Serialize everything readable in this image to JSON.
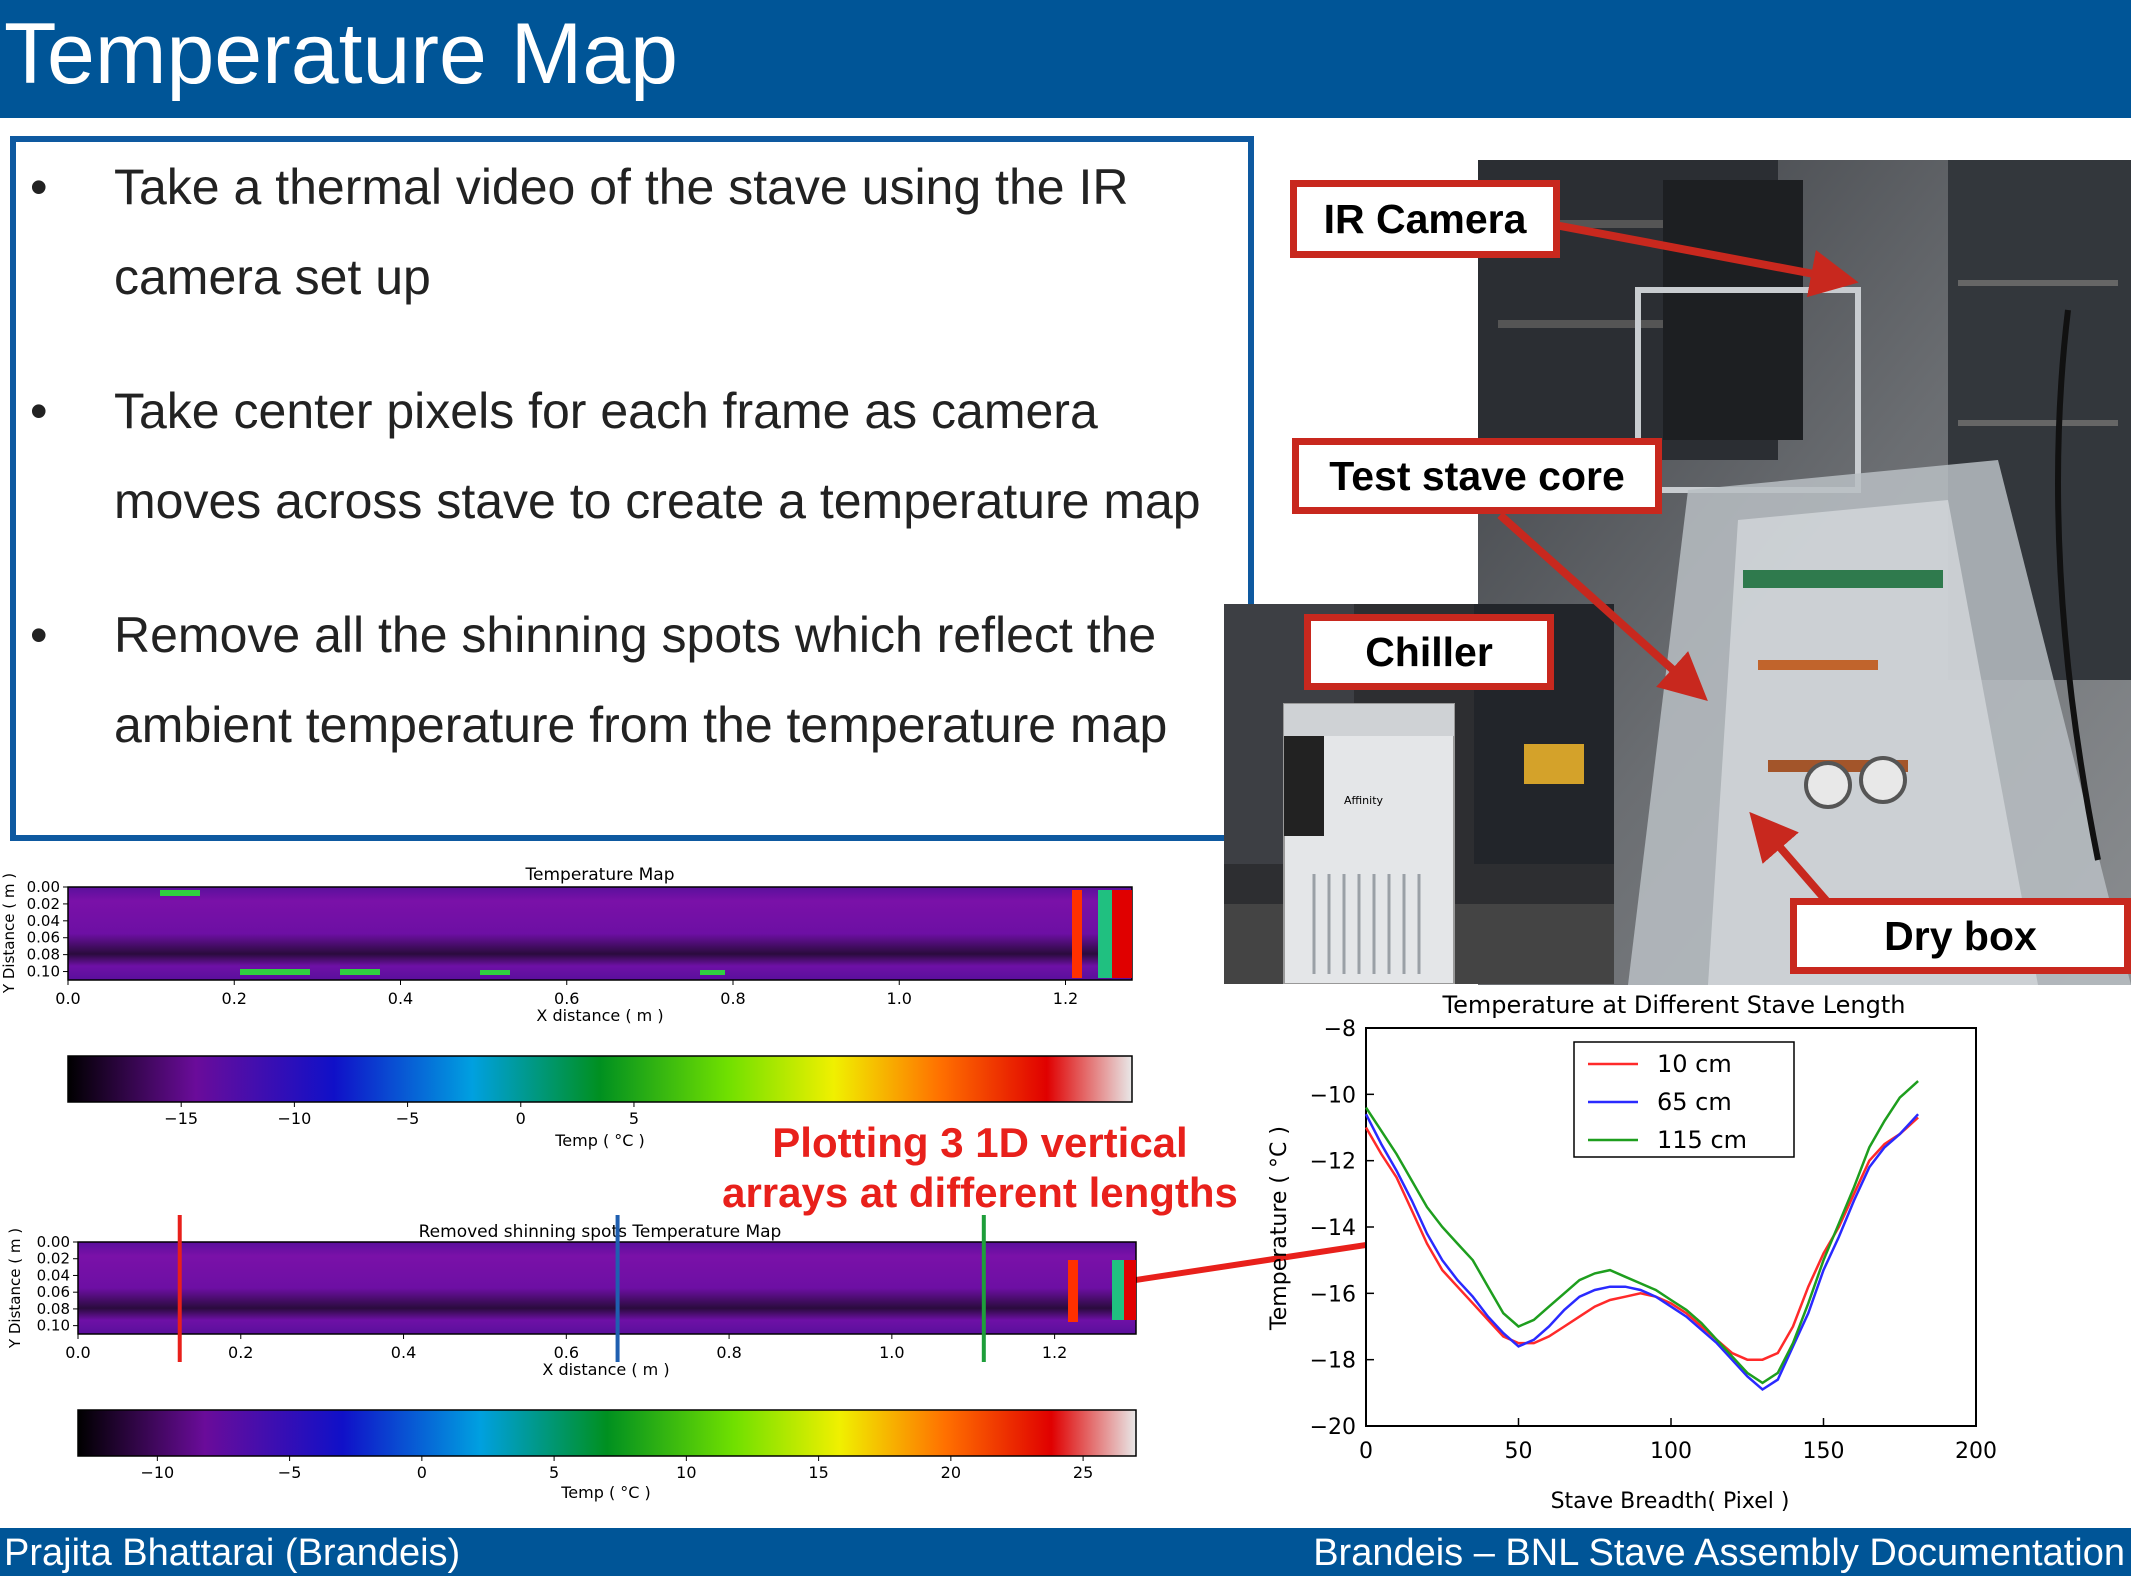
{
  "slide": {
    "title": "Temperature Map",
    "bullets": [
      "Take a thermal video of the stave using the IR camera set up",
      "Take center pixels for each frame as camera moves across stave to create a temperature map",
      "Remove all the shinning spots which reflect the ambient temperature  from the temperature map"
    ],
    "bullet_symbol": "•",
    "annotation_lines": [
      "Plotting 3 1D vertical",
      "arrays at different lengths"
    ]
  },
  "photo": {
    "callouts": {
      "ir_camera": "IR Camera",
      "test_stave_core": "Test stave core",
      "chiller": "Chiller",
      "dry_box": "Dry box"
    },
    "chiller_brand": "Affinity"
  },
  "footer": {
    "left": "Prajita Bhattarai (Brandeis)",
    "right": "Brandeis – BNL Stave Assembly Documentation"
  },
  "colors": {
    "bar": "#005597",
    "callout_border": "#c8281e",
    "annotation": "#e8201b"
  },
  "chart_data": [
    {
      "type": "heatmap",
      "title": "Temperature Map",
      "xlabel": "X distance ( m )",
      "ylabel": "Y Distance ( m )",
      "x_ticks": [
        "0.0",
        "0.2",
        "0.4",
        "0.6",
        "0.8",
        "1.0",
        "1.2"
      ],
      "y_ticks": [
        "0.00",
        "0.02",
        "0.04",
        "0.06",
        "0.08",
        "0.10"
      ],
      "xlim": [
        0,
        1.28
      ],
      "ylim": [
        0,
        0.11
      ],
      "colorbar": {
        "label": "Temp (  °C )",
        "ticks": [
          "−15",
          "−10",
          "−5",
          "0",
          "5"
        ],
        "range": [
          -20,
          27
        ]
      }
    },
    {
      "type": "heatmap",
      "title": "Removed shinning spots Temperature Map",
      "xlabel": "X distance ( m )",
      "ylabel": "Y Distance ( m )",
      "x_ticks": [
        "0.0",
        "0.2",
        "0.4",
        "0.6",
        "0.8",
        "1.0",
        "1.2"
      ],
      "y_ticks": [
        "0.00",
        "0.02",
        "0.04",
        "0.06",
        "0.08",
        "0.10"
      ],
      "xlim": [
        0,
        1.3
      ],
      "ylim": [
        0,
        0.11
      ],
      "marker_lines_x": [
        0.125,
        0.663,
        1.113
      ],
      "marker_colors": [
        "#e8201b",
        "#1f5fb0",
        "#1e9e3a"
      ],
      "colorbar": {
        "label": "Temp (  °C )",
        "ticks": [
          "−10",
          "−5",
          "0",
          "5",
          "10",
          "15",
          "20",
          "25"
        ],
        "range": [
          -13,
          27
        ]
      }
    },
    {
      "type": "line",
      "title": "Temperature at Different Stave Length",
      "xlabel": "Stave Breadth( Pixel )",
      "ylabel": "Temperature ( °C )",
      "xlim": [
        0,
        200
      ],
      "ylim": [
        -20,
        -8
      ],
      "x_ticks": [
        0,
        50,
        100,
        150,
        200
      ],
      "y_ticks": [
        -8,
        -10,
        -12,
        -14,
        -16,
        -18,
        -20
      ],
      "legend": "top-center",
      "series": [
        {
          "name": "10 cm",
          "color": "#ff2a2a",
          "points": [
            [
              0,
              -11.0
            ],
            [
              5,
              -11.8
            ],
            [
              10,
              -12.5
            ],
            [
              15,
              -13.5
            ],
            [
              20,
              -14.5
            ],
            [
              25,
              -15.3
            ],
            [
              30,
              -15.8
            ],
            [
              35,
              -16.3
            ],
            [
              40,
              -16.8
            ],
            [
              45,
              -17.3
            ],
            [
              50,
              -17.5
            ],
            [
              55,
              -17.5
            ],
            [
              60,
              -17.3
            ],
            [
              65,
              -17.0
            ],
            [
              70,
              -16.7
            ],
            [
              75,
              -16.4
            ],
            [
              80,
              -16.2
            ],
            [
              85,
              -16.1
            ],
            [
              90,
              -16.0
            ],
            [
              95,
              -16.1
            ],
            [
              100,
              -16.3
            ],
            [
              105,
              -16.6
            ],
            [
              110,
              -17.0
            ],
            [
              115,
              -17.4
            ],
            [
              120,
              -17.8
            ],
            [
              125,
              -18.0
            ],
            [
              130,
              -18.0
            ],
            [
              135,
              -17.8
            ],
            [
              140,
              -17.0
            ],
            [
              145,
              -15.8
            ],
            [
              150,
              -14.8
            ],
            [
              155,
              -14.0
            ],
            [
              160,
              -13.0
            ],
            [
              165,
              -12.0
            ],
            [
              170,
              -11.5
            ],
            [
              175,
              -11.2
            ],
            [
              181,
              -10.7
            ]
          ]
        },
        {
          "name": "65 cm",
          "color": "#2a2aff",
          "points": [
            [
              0,
              -10.6
            ],
            [
              5,
              -11.5
            ],
            [
              10,
              -12.3
            ],
            [
              15,
              -13.2
            ],
            [
              20,
              -14.2
            ],
            [
              25,
              -15.0
            ],
            [
              30,
              -15.6
            ],
            [
              35,
              -16.1
            ],
            [
              40,
              -16.7
            ],
            [
              45,
              -17.2
            ],
            [
              50,
              -17.6
            ],
            [
              55,
              -17.4
            ],
            [
              60,
              -17.0
            ],
            [
              65,
              -16.5
            ],
            [
              70,
              -16.1
            ],
            [
              75,
              -15.9
            ],
            [
              80,
              -15.8
            ],
            [
              85,
              -15.8
            ],
            [
              90,
              -15.9
            ],
            [
              95,
              -16.1
            ],
            [
              100,
              -16.4
            ],
            [
              105,
              -16.7
            ],
            [
              110,
              -17.1
            ],
            [
              115,
              -17.5
            ],
            [
              120,
              -18.0
            ],
            [
              125,
              -18.5
            ],
            [
              130,
              -18.9
            ],
            [
              135,
              -18.6
            ],
            [
              140,
              -17.6
            ],
            [
              145,
              -16.6
            ],
            [
              150,
              -15.3
            ],
            [
              155,
              -14.3
            ],
            [
              160,
              -13.2
            ],
            [
              165,
              -12.2
            ],
            [
              170,
              -11.6
            ],
            [
              175,
              -11.2
            ],
            [
              181,
              -10.6
            ]
          ]
        },
        {
          "name": "115 cm",
          "color": "#1e9e1e",
          "points": [
            [
              0,
              -10.4
            ],
            [
              5,
              -11.1
            ],
            [
              10,
              -11.8
            ],
            [
              15,
              -12.6
            ],
            [
              20,
              -13.4
            ],
            [
              25,
              -14.0
            ],
            [
              30,
              -14.5
            ],
            [
              35,
              -15.0
            ],
            [
              40,
              -15.8
            ],
            [
              45,
              -16.6
            ],
            [
              50,
              -17.0
            ],
            [
              55,
              -16.8
            ],
            [
              60,
              -16.4
            ],
            [
              65,
              -16.0
            ],
            [
              70,
              -15.6
            ],
            [
              75,
              -15.4
            ],
            [
              80,
              -15.3
            ],
            [
              85,
              -15.5
            ],
            [
              90,
              -15.7
            ],
            [
              95,
              -15.9
            ],
            [
              100,
              -16.2
            ],
            [
              105,
              -16.5
            ],
            [
              110,
              -16.9
            ],
            [
              115,
              -17.4
            ],
            [
              120,
              -17.9
            ],
            [
              125,
              -18.4
            ],
            [
              130,
              -18.7
            ],
            [
              135,
              -18.4
            ],
            [
              140,
              -17.5
            ],
            [
              145,
              -16.3
            ],
            [
              150,
              -15.0
            ],
            [
              155,
              -13.9
            ],
            [
              160,
              -12.8
            ],
            [
              165,
              -11.6
            ],
            [
              170,
              -10.8
            ],
            [
              175,
              -10.1
            ],
            [
              181,
              -9.6
            ]
          ]
        }
      ]
    }
  ]
}
